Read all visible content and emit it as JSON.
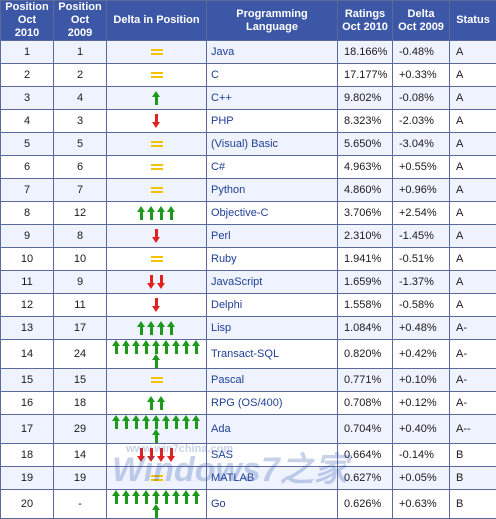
{
  "headers": {
    "pos2010": [
      "Position",
      "Oct 2010"
    ],
    "pos2009": [
      "Position",
      "Oct 2009"
    ],
    "delta_pos": "Delta in Position",
    "lang": "Programming Language",
    "rating": [
      "Ratings",
      "Oct 2010"
    ],
    "delta": [
      "Delta",
      "Oct 2009"
    ],
    "status": "Status"
  },
  "colors": {
    "header_bg": "#3b57a6",
    "up_arrow": "#1d9a1d",
    "down_arrow": "#e12020",
    "equal": "#f4c300",
    "link_text": "#1f3f95"
  },
  "watermark": {
    "url": "www.win7china.com",
    "brand": "Windows7之家"
  },
  "rows": [
    {
      "pos2010": "1",
      "pos2009": "1",
      "delta_icon": "equal",
      "delta_count": 0,
      "lang": "Java",
      "rating": "18.166%",
      "delta": "-0.48%",
      "status": "A"
    },
    {
      "pos2010": "2",
      "pos2009": "2",
      "delta_icon": "equal",
      "delta_count": 0,
      "lang": "C",
      "rating": "17.177%",
      "delta": "+0.33%",
      "status": "A"
    },
    {
      "pos2010": "3",
      "pos2009": "4",
      "delta_icon": "up",
      "delta_count": 1,
      "lang": "C++",
      "rating": "9.802%",
      "delta": "-0.08%",
      "status": "A"
    },
    {
      "pos2010": "4",
      "pos2009": "3",
      "delta_icon": "down",
      "delta_count": 1,
      "lang": "PHP",
      "rating": "8.323%",
      "delta": "-2.03%",
      "status": "A"
    },
    {
      "pos2010": "5",
      "pos2009": "5",
      "delta_icon": "equal",
      "delta_count": 0,
      "lang": "(Visual) Basic",
      "rating": "5.650%",
      "delta": "-3.04%",
      "status": "A"
    },
    {
      "pos2010": "6",
      "pos2009": "6",
      "delta_icon": "equal",
      "delta_count": 0,
      "lang": "C#",
      "rating": "4.963%",
      "delta": "+0.55%",
      "status": "A"
    },
    {
      "pos2010": "7",
      "pos2009": "7",
      "delta_icon": "equal",
      "delta_count": 0,
      "lang": "Python",
      "rating": "4.860%",
      "delta": "+0.96%",
      "status": "A"
    },
    {
      "pos2010": "8",
      "pos2009": "12",
      "delta_icon": "up",
      "delta_count": 4,
      "lang": "Objective-C",
      "rating": "3.706%",
      "delta": "+2.54%",
      "status": "A"
    },
    {
      "pos2010": "9",
      "pos2009": "8",
      "delta_icon": "down",
      "delta_count": 1,
      "lang": "Perl",
      "rating": "2.310%",
      "delta": "-1.45%",
      "status": "A"
    },
    {
      "pos2010": "10",
      "pos2009": "10",
      "delta_icon": "equal",
      "delta_count": 0,
      "lang": "Ruby",
      "rating": "1.941%",
      "delta": "-0.51%",
      "status": "A"
    },
    {
      "pos2010": "11",
      "pos2009": "9",
      "delta_icon": "down",
      "delta_count": 2,
      "lang": "JavaScript",
      "rating": "1.659%",
      "delta": "-1.37%",
      "status": "A"
    },
    {
      "pos2010": "12",
      "pos2009": "11",
      "delta_icon": "down",
      "delta_count": 1,
      "lang": "Delphi",
      "rating": "1.558%",
      "delta": "-0.58%",
      "status": "A"
    },
    {
      "pos2010": "13",
      "pos2009": "17",
      "delta_icon": "up",
      "delta_count": 4,
      "lang": "Lisp",
      "rating": "1.084%",
      "delta": "+0.48%",
      "status": "A-"
    },
    {
      "pos2010": "14",
      "pos2009": "24",
      "delta_icon": "up",
      "delta_count": 10,
      "lang": "Transact-SQL",
      "rating": "0.820%",
      "delta": "+0.42%",
      "status": "A-"
    },
    {
      "pos2010": "15",
      "pos2009": "15",
      "delta_icon": "equal",
      "delta_count": 0,
      "lang": "Pascal",
      "rating": "0.771%",
      "delta": "+0.10%",
      "status": "A-"
    },
    {
      "pos2010": "16",
      "pos2009": "18",
      "delta_icon": "up",
      "delta_count": 2,
      "lang": "RPG (OS/400)",
      "rating": "0.708%",
      "delta": "+0.12%",
      "status": "A-"
    },
    {
      "pos2010": "17",
      "pos2009": "29",
      "delta_icon": "up",
      "delta_count": 10,
      "lang": "Ada",
      "rating": "0.704%",
      "delta": "+0.40%",
      "status": "A--"
    },
    {
      "pos2010": "18",
      "pos2009": "14",
      "delta_icon": "down",
      "delta_count": 4,
      "lang": "SAS",
      "rating": "0.664%",
      "delta": "-0.14%",
      "status": "B"
    },
    {
      "pos2010": "19",
      "pos2009": "19",
      "delta_icon": "equal",
      "delta_count": 0,
      "lang": "MATLAB",
      "rating": "0.627%",
      "delta": "+0.05%",
      "status": "B"
    },
    {
      "pos2010": "20",
      "pos2009": "-",
      "delta_icon": "up",
      "delta_count": 10,
      "lang": "Go",
      "rating": "0.626%",
      "delta": "+0.63%",
      "status": "B"
    }
  ]
}
